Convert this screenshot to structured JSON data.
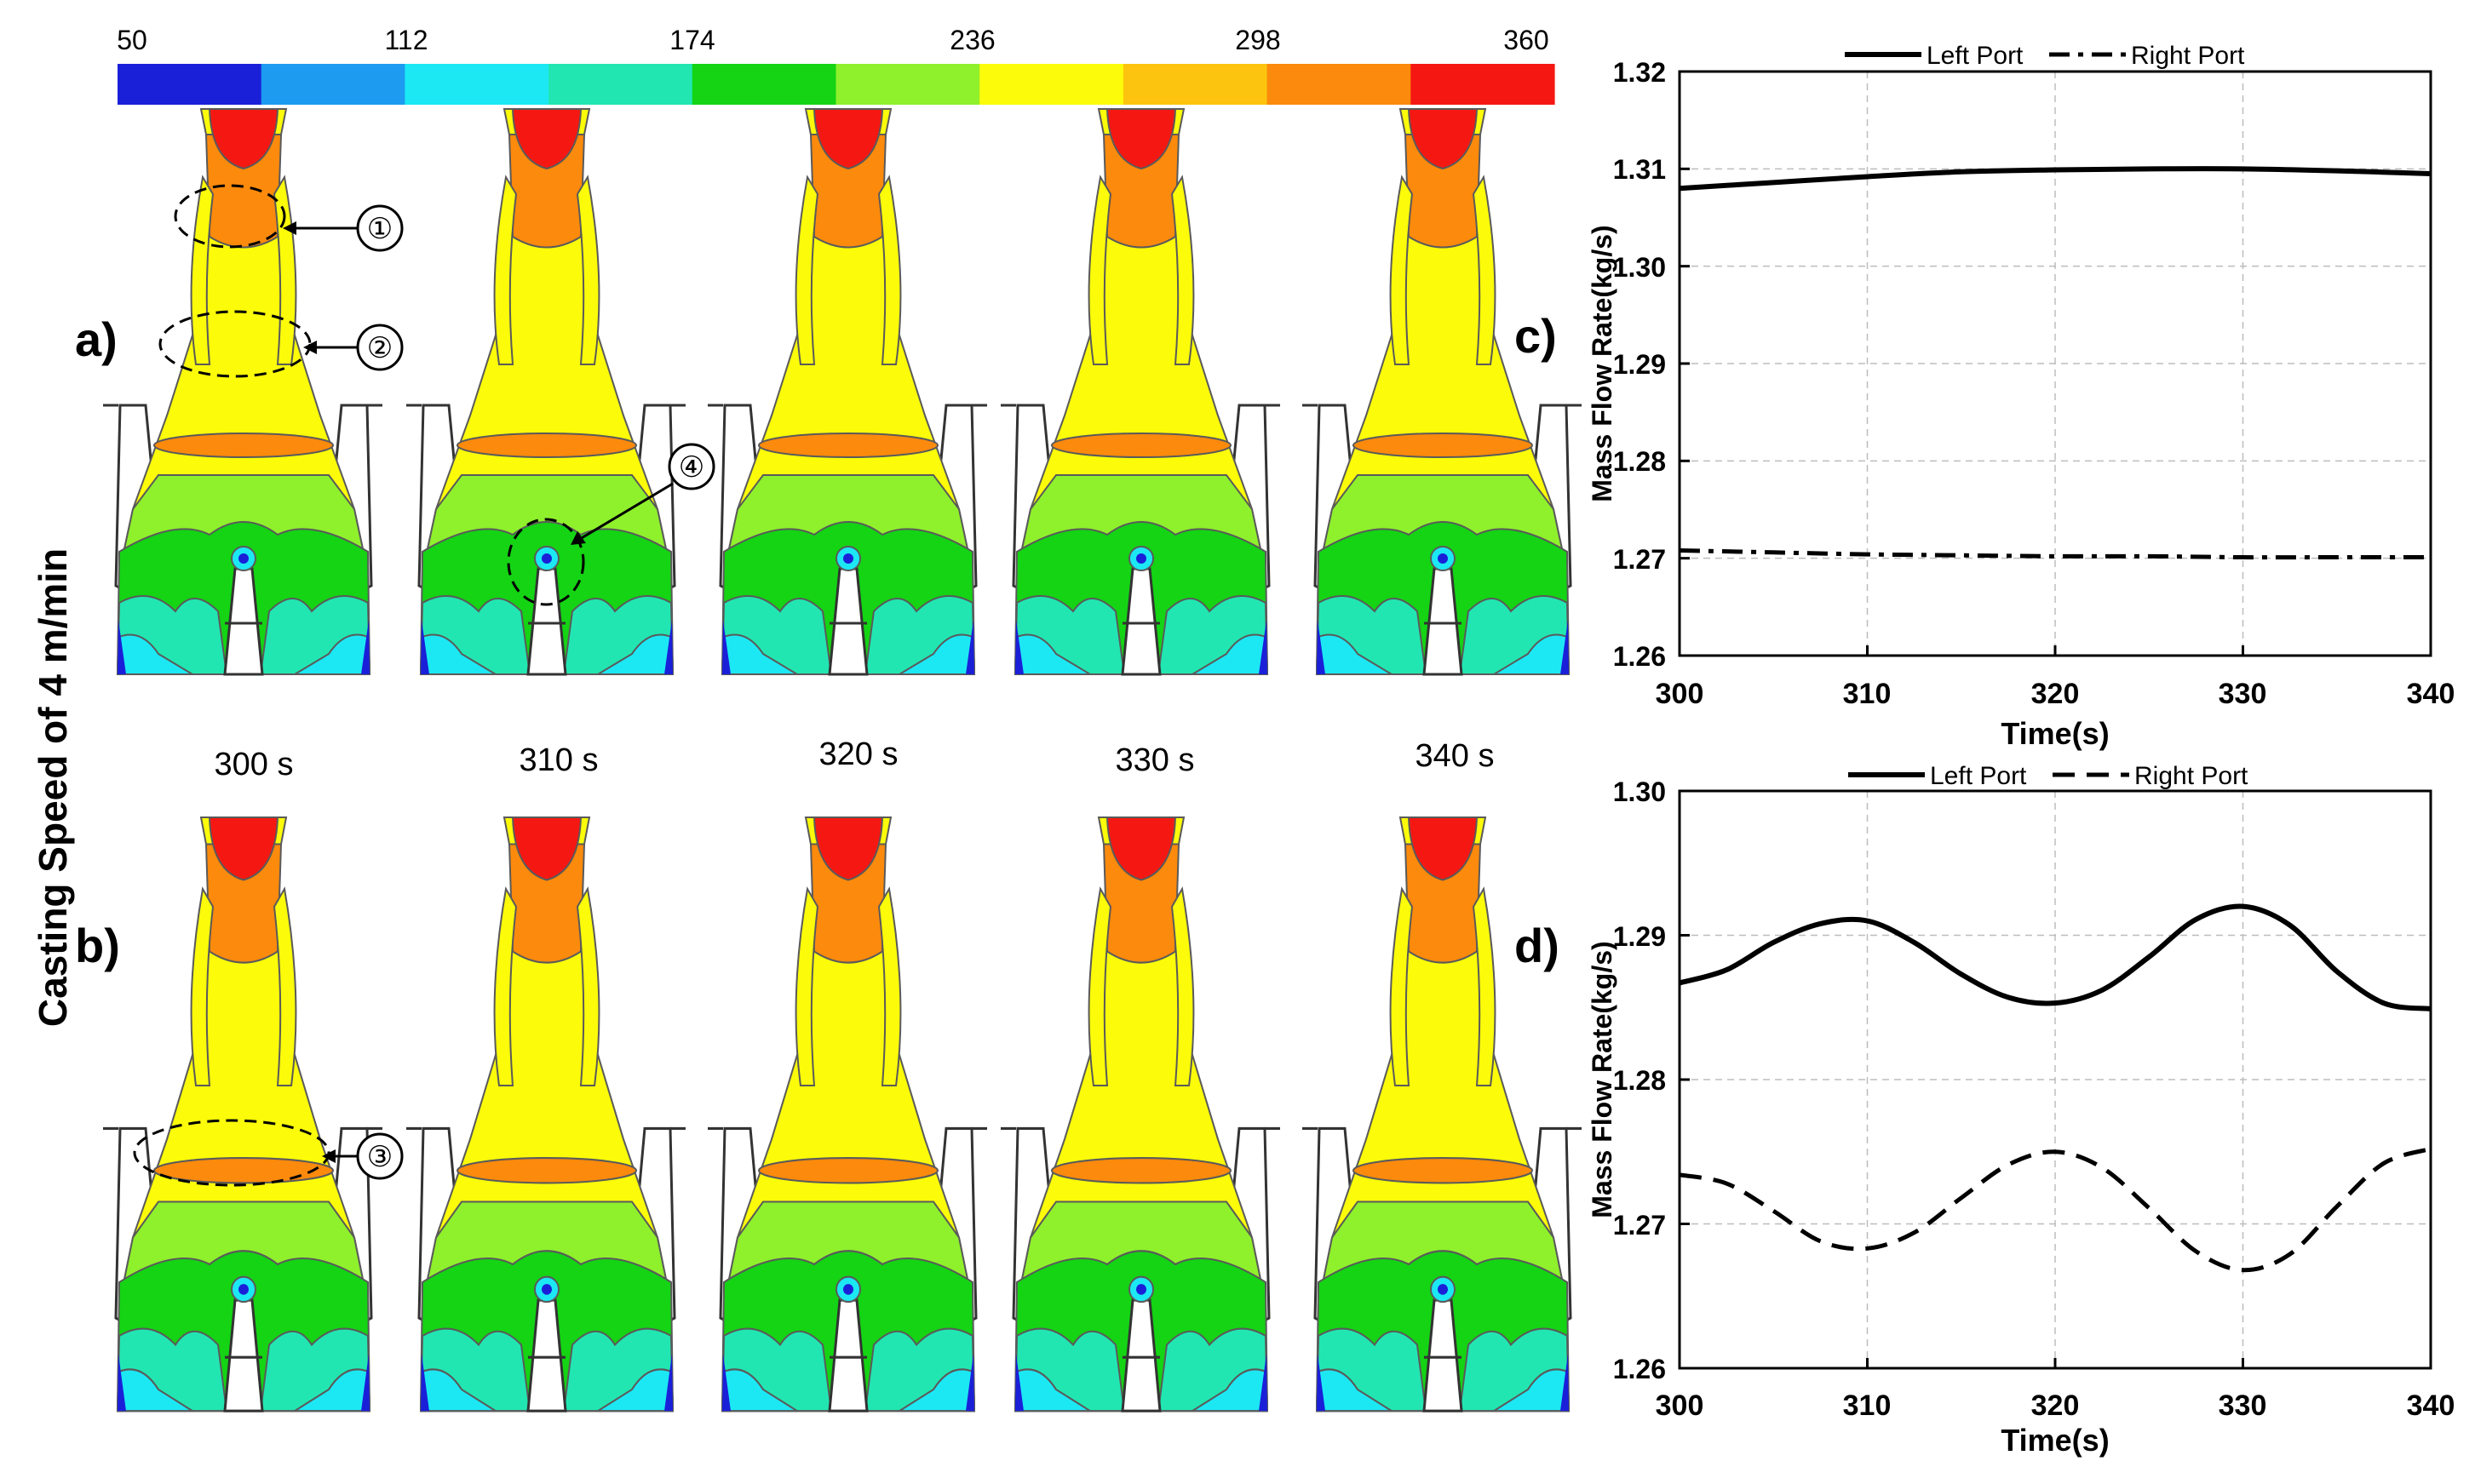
{
  "colorbar": {
    "ticks": [
      "50",
      "112",
      "174",
      "236",
      "298",
      "360"
    ],
    "colors": [
      "#1a20d8",
      "#1c9bf0",
      "#1ce8f4",
      "#22e6b2",
      "#14d414",
      "#8ff02c",
      "#fbfb0a",
      "#fcc40e",
      "#fc8a0c",
      "#f51812"
    ]
  },
  "row_title": "Casting Speed of 4 m/min",
  "panel_labels": [
    "a)",
    "b)",
    "c)",
    "d)"
  ],
  "time_labels": [
    "300 s",
    "310 s",
    "320 s",
    "330 s",
    "340 s"
  ],
  "markers": [
    "①",
    "②",
    "③",
    "④"
  ],
  "chart_data": [
    {
      "type": "line",
      "panel": "c)",
      "xlabel": "Time(s)",
      "ylabel": "Mass Flow Rate(kg/s)",
      "xlim": [
        300,
        340
      ],
      "ylim": [
        1.26,
        1.32
      ],
      "xticks": [
        "300",
        "310",
        "320",
        "330",
        "340"
      ],
      "yticks": [
        "1.26",
        "1.27",
        "1.28",
        "1.29",
        "1.30",
        "1.31",
        "1.32"
      ],
      "legend": [
        "Left Port",
        "Right Port"
      ],
      "x": [
        300,
        305,
        310,
        315,
        320,
        325,
        330,
        335,
        340
      ],
      "series": [
        {
          "name": "Left Port",
          "style": "solid",
          "values": [
            1.308,
            1.3086,
            1.3092,
            1.3097,
            1.3099,
            1.31,
            1.31,
            1.3098,
            1.3095
          ]
        },
        {
          "name": "Right Port",
          "style": "dash-dot",
          "values": [
            1.2708,
            1.2706,
            1.2704,
            1.2703,
            1.2702,
            1.2702,
            1.2701,
            1.2701,
            1.2701
          ]
        }
      ]
    },
    {
      "type": "line",
      "panel": "d)",
      "xlabel": "Time(s)",
      "ylabel": "Mass Flow Rate(kg/s)",
      "xlim": [
        300,
        340
      ],
      "ylim": [
        1.26,
        1.3
      ],
      "xticks": [
        "300",
        "310",
        "320",
        "330",
        "340"
      ],
      "yticks": [
        "1.26",
        "1.27",
        "1.28",
        "1.29",
        "1.30"
      ],
      "legend": [
        "Left Port",
        "Right Port"
      ],
      "x": [
        300,
        302.5,
        305,
        307.5,
        310,
        312.5,
        315,
        317.5,
        320,
        322.5,
        325,
        327.5,
        330,
        332.5,
        335,
        337.5,
        340
      ],
      "series": [
        {
          "name": "Left Port",
          "style": "solid",
          "values": [
            1.2867,
            1.2876,
            1.2895,
            1.2908,
            1.291,
            1.2895,
            1.2873,
            1.2857,
            1.2853,
            1.2862,
            1.2885,
            1.2911,
            1.292,
            1.2907,
            1.2875,
            1.2853,
            1.2849
          ]
        },
        {
          "name": "Right Port",
          "style": "dashed",
          "values": [
            1.2734,
            1.2728,
            1.2709,
            1.2688,
            1.2683,
            1.2694,
            1.2718,
            1.2741,
            1.275,
            1.2739,
            1.2711,
            1.2681,
            1.2668,
            1.2679,
            1.2712,
            1.2742,
            1.2752
          ]
        }
      ]
    }
  ]
}
